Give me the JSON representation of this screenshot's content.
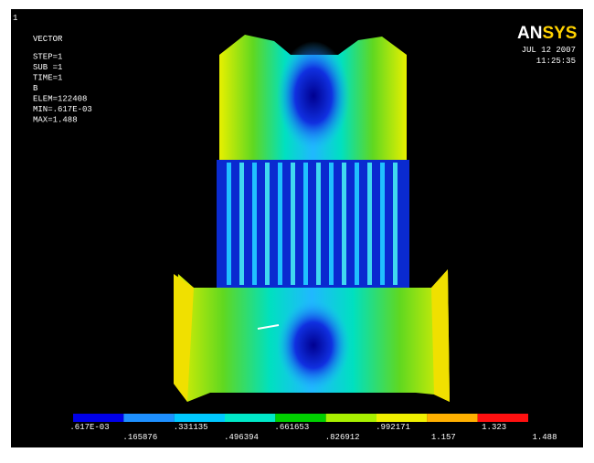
{
  "window": {
    "number": "1"
  },
  "info": {
    "lines": [
      "VECTOR",
      "STEP=1",
      "SUB =1",
      "TIME=1",
      "B",
      "ELEM=122408",
      "MIN=.617E-03",
      "MAX=1.488"
    ]
  },
  "logo": {
    "left": "AN",
    "right": "SYS"
  },
  "stamp": {
    "date": "JUL 12 2007",
    "time": "11:25:35"
  },
  "legend": {
    "labels": [
      ".617E-03",
      ".165876",
      ".331135",
      ".496394",
      ".661653",
      ".826912",
      ".992171",
      "1.157",
      "1.323",
      "1.488"
    ],
    "colors": [
      "#0000e8",
      "#1e90ff",
      "#00c8ff",
      "#00e8c8",
      "#00d000",
      "#a8f000",
      "#f0f000",
      "#ffb000",
      "#ff1010"
    ]
  }
}
